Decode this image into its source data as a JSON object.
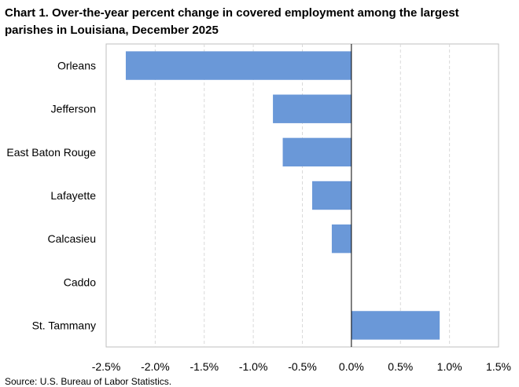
{
  "chart_data": {
    "type": "bar",
    "orientation": "horizontal",
    "title_lines": [
      "Chart 1. Over-the-year percent change in covered employment among the largest",
      "parishes in Louisiana, December 2025"
    ],
    "categories": [
      "Orleans",
      "Jefferson",
      "East Baton Rouge",
      "Lafayette",
      "Calcasieu",
      "Caddo",
      "St. Tammany"
    ],
    "values": [
      -2.3,
      -0.8,
      -0.7,
      -0.4,
      -0.2,
      0.0,
      0.9
    ],
    "xlim": [
      -2.5,
      1.5
    ],
    "xticks": [
      -2.5,
      -2.0,
      -1.5,
      -1.0,
      -0.5,
      0.0,
      0.5,
      1.0,
      1.5
    ],
    "xtick_labels": [
      "-2.5%",
      "-2.0%",
      "-1.5%",
      "-1.0%",
      "-0.5%",
      "0.0%",
      "0.5%",
      "1.0%",
      "1.5%"
    ],
    "grid": "vertical dashed",
    "bar_color": "#6a98d8",
    "gridline_color": "#d9d9d9",
    "source": "Source: U.S. Bureau of Labor Statistics."
  }
}
